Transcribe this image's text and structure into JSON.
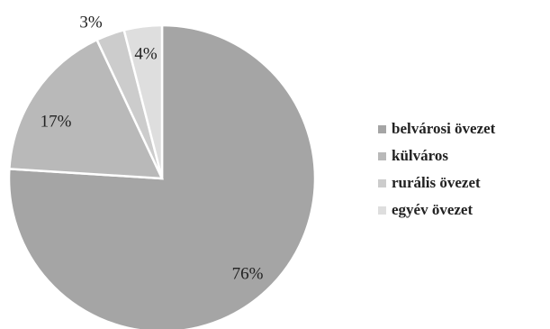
{
  "chart_data": {
    "type": "pie",
    "categories": [
      "belvárosi övezet",
      "külváros",
      "rurális övezet",
      "egyév övezet"
    ],
    "values": [
      76,
      17,
      3,
      4
    ],
    "value_labels": [
      "76%",
      "17%",
      "3%",
      "4%"
    ],
    "colors": [
      "#a5a5a5",
      "#b9b9b9",
      "#cccccc",
      "#dedede"
    ],
    "start_angle_deg": 0,
    "direction": "clockwise",
    "legend_placement": "right"
  }
}
